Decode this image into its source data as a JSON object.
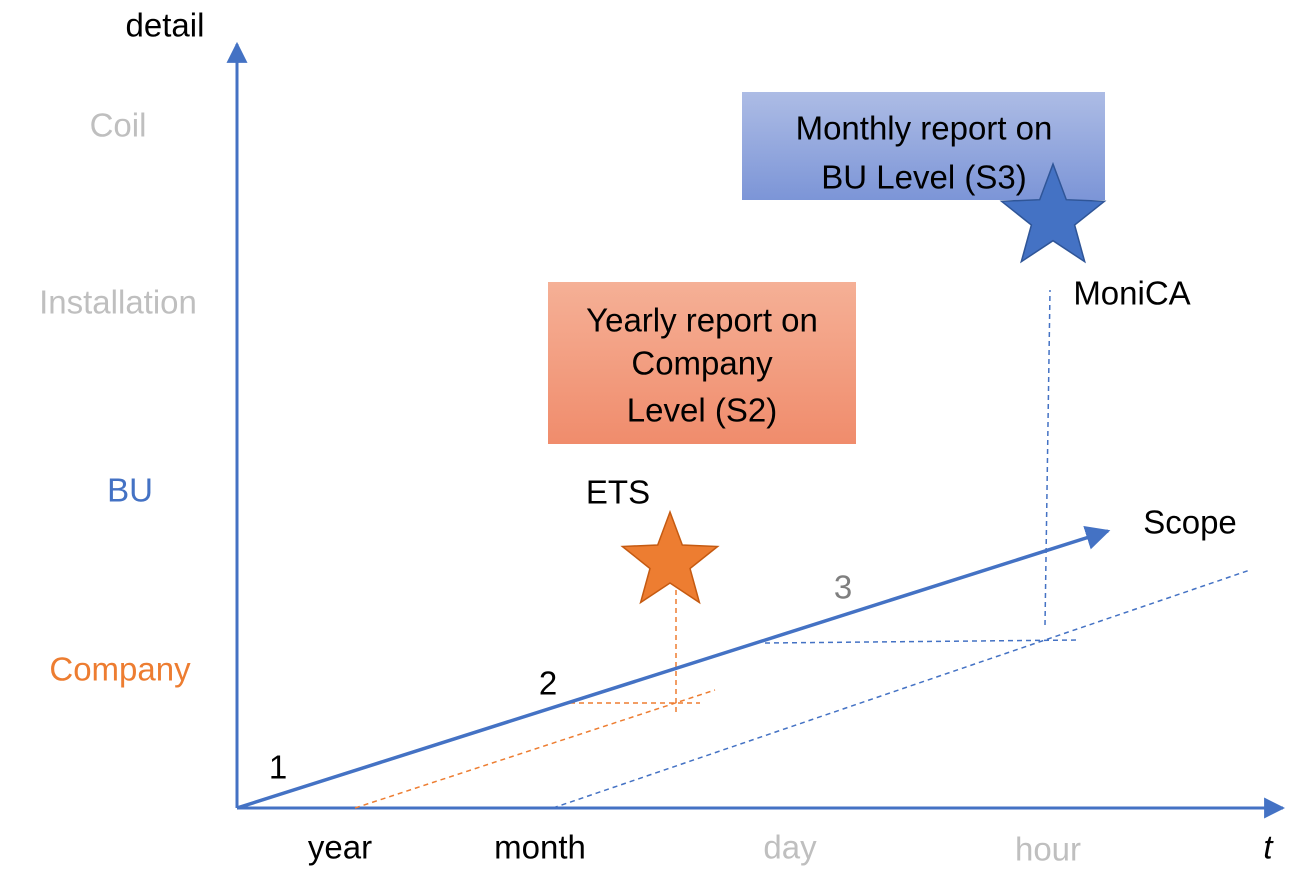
{
  "axes": {
    "y_title": "detail",
    "y_levels": [
      "Coil",
      "Installation",
      "BU",
      "Company"
    ],
    "x_levels": [
      "year",
      "month",
      "day",
      "hour"
    ],
    "x_title": "t"
  },
  "scope": {
    "label": "Scope",
    "steps": [
      "1",
      "2",
      "3"
    ]
  },
  "markers": [
    {
      "label": "ETS",
      "box": [
        "Yearly report on",
        "Company",
        "Level (S2)"
      ]
    },
    {
      "label": "MoniCA",
      "box": [
        "Monthly report on",
        "BU Level (S3)"
      ]
    }
  ]
}
